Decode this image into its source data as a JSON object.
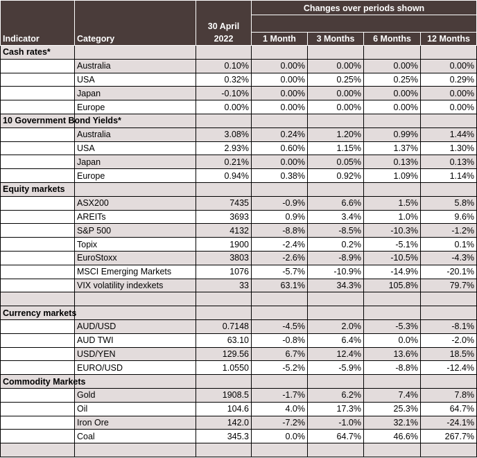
{
  "header": {
    "indicator": "Indicator",
    "category": "Category",
    "date_line1": "30 April",
    "date_line2": "2022",
    "changes": "Changes over periods shown",
    "m1": "1 Month",
    "m3": "3 Months",
    "m6": "6 Months",
    "m12": "12 Months"
  },
  "sections": [
    {
      "title": "Cash rates*",
      "rows": [
        {
          "category": "Australia",
          "value": "0.10%",
          "m1": "0.00%",
          "m3": "0.00%",
          "m6": "0.00%",
          "m12": "0.00%"
        },
        {
          "category": "USA",
          "value": "0.32%",
          "m1": "0.00%",
          "m3": "0.25%",
          "m6": "0.25%",
          "m12": "0.29%"
        },
        {
          "category": "Japan",
          "value": "-0.10%",
          "m1": "0.00%",
          "m3": "0.00%",
          "m6": "0.00%",
          "m12": "0.00%"
        },
        {
          "category": "Europe",
          "value": "0.00%",
          "m1": "0.00%",
          "m3": "0.00%",
          "m6": "0.00%",
          "m12": "0.00%"
        }
      ]
    },
    {
      "title": "10 Government Bond Yields*",
      "rows": [
        {
          "category": "Australia",
          "value": "3.08%",
          "m1": "0.24%",
          "m3": "1.20%",
          "m6": "0.99%",
          "m12": "1.44%"
        },
        {
          "category": "USA",
          "value": "2.93%",
          "m1": "0.60%",
          "m3": "1.15%",
          "m6": "1.37%",
          "m12": "1.30%"
        },
        {
          "category": "Japan",
          "value": "0.21%",
          "m1": "0.00%",
          "m3": "0.05%",
          "m6": "0.13%",
          "m12": "0.13%"
        },
        {
          "category": "Europe",
          "value": "0.94%",
          "m1": "0.38%",
          "m3": "0.92%",
          "m6": "1.09%",
          "m12": "1.14%"
        }
      ]
    },
    {
      "title": "Equity markets",
      "rows": [
        {
          "category": "ASX200",
          "value": "7435",
          "m1": "-0.9%",
          "m3": "6.6%",
          "m6": "1.5%",
          "m12": "5.8%"
        },
        {
          "category": "AREITs",
          "value": "3693",
          "m1": "0.9%",
          "m3": "3.4%",
          "m6": "1.0%",
          "m12": "9.6%"
        },
        {
          "category": "S&P 500",
          "value": "4132",
          "m1": "-8.8%",
          "m3": "-8.5%",
          "m6": "-10.3%",
          "m12": "-1.2%"
        },
        {
          "category": "Topix",
          "value": "1900",
          "m1": "-2.4%",
          "m3": "0.2%",
          "m6": "-5.1%",
          "m12": "0.1%"
        },
        {
          "category": "EuroStoxx",
          "value": "3803",
          "m1": "-2.6%",
          "m3": "-8.9%",
          "m6": "-10.5%",
          "m12": "-4.3%"
        },
        {
          "category": "MSCI Emerging Markets",
          "value": "1076",
          "m1": "-5.7%",
          "m3": "-10.9%",
          "m6": "-14.9%",
          "m12": "-20.1%"
        },
        {
          "category": "VIX volatility indexkets",
          "value": "33",
          "m1": "63.1%",
          "m3": "34.3%",
          "m6": "105.8%",
          "m12": "79.7%"
        }
      ],
      "trailing_blank": true
    },
    {
      "title": "Currency markets",
      "rows": [
        {
          "category": "AUD/USD",
          "value": "0.7148",
          "m1": "-4.5%",
          "m3": "2.0%",
          "m6": "-5.3%",
          "m12": "-8.1%"
        },
        {
          "category": "AUD TWI",
          "value": "63.10",
          "m1": "-0.8%",
          "m3": "6.4%",
          "m6": "0.0%",
          "m12": "-2.0%"
        },
        {
          "category": "USD/YEN",
          "value": "129.56",
          "m1": "6.7%",
          "m3": "12.4%",
          "m6": "13.6%",
          "m12": "18.5%"
        },
        {
          "category": "EURO/USD",
          "value": "1.0550",
          "m1": "-5.2%",
          "m3": "-5.9%",
          "m6": "-8.8%",
          "m12": "-12.4%"
        }
      ]
    },
    {
      "title": "Commodity Markets",
      "rows": [
        {
          "category": "Gold",
          "value": "1908.5",
          "m1": "-1.7%",
          "m3": "6.2%",
          "m6": "7.4%",
          "m12": "7.8%"
        },
        {
          "category": "Oil",
          "value": "104.6",
          "m1": "4.0%",
          "m3": "17.3%",
          "m6": "25.3%",
          "m12": "64.7%"
        },
        {
          "category": "Iron Ore",
          "value": "142.0",
          "m1": "-7.2%",
          "m3": "-1.0%",
          "m6": "32.1%",
          "m12": "-24.1%"
        },
        {
          "category": "Coal",
          "value": "345.3",
          "m1": "0.0%",
          "m3": "64.7%",
          "m6": "46.6%",
          "m12": "267.7%"
        }
      ],
      "trailing_blank": true
    }
  ],
  "colors": {
    "header_bg": "#4a3c3a",
    "shade_bg": "#e3dcdc"
  }
}
